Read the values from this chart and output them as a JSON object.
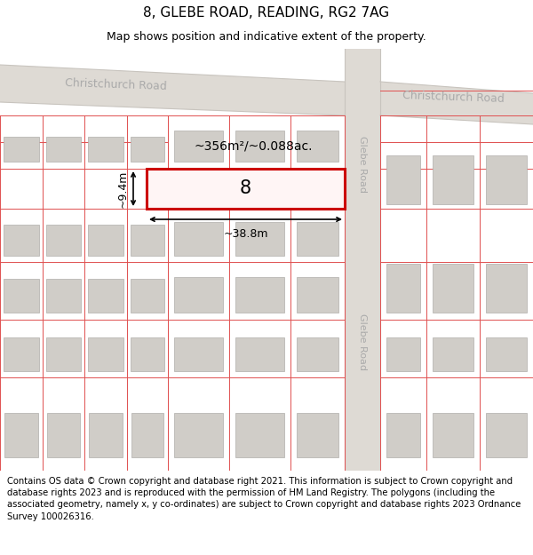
{
  "title": "8, GLEBE ROAD, READING, RG2 7AG",
  "subtitle": "Map shows position and indicative extent of the property.",
  "footer": "Contains OS data © Crown copyright and database right 2021. This information is subject to Crown copyright and database rights 2023 and is reproduced with the permission of HM Land Registry. The polygons (including the associated geometry, namely x, y co-ordinates) are subject to Crown copyright and database rights 2023 Ordnance Survey 100026316.",
  "area_label": "~356m²/~0.088ac.",
  "number_label": "8",
  "dim_width": "~38.8m",
  "dim_height": "~9.4m",
  "plot_color": "#e05050",
  "highlight_color": "#cc0000",
  "building_fill": "#d0cdc8",
  "building_edge": "#b0adaa",
  "road_fill": "#dedad4",
  "road_edge": "#c8c4be",
  "road_label_color": "#aaaaaa",
  "map_bg": "#f8f6f2",
  "title_fontsize": 11,
  "subtitle_fontsize": 9,
  "footer_fontsize": 7.2
}
